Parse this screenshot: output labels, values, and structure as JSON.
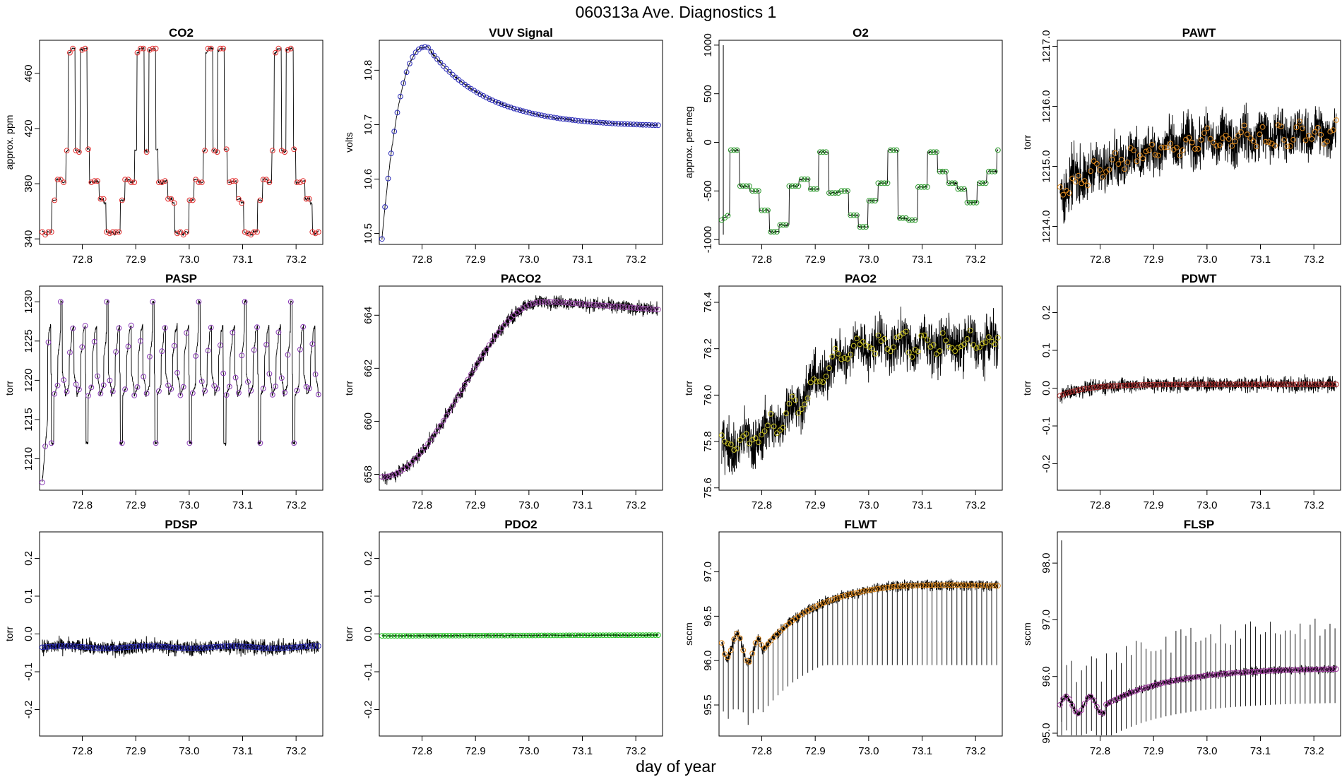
{
  "figure": {
    "title": "060313a   Ave. Diagnostics 1",
    "xlabel": "day of year"
  },
  "chart_data": [
    {
      "type": "line",
      "title": "CO2",
      "ylabel": "approx. ppm",
      "xlim": [
        72.72,
        73.25
      ],
      "ylim": [
        336,
        484
      ],
      "xticks": [
        72.8,
        72.9,
        73.0,
        73.1,
        73.2
      ],
      "xtick_labels": [
        "72.8",
        "72.9",
        "73.0",
        "73.1",
        "73.2"
      ],
      "yticks": [
        340,
        380,
        420,
        460
      ],
      "ytick_labels": [
        "340",
        "380",
        "420",
        "460"
      ],
      "marker_color": "#e23030",
      "pattern": "co2",
      "noise": 0.8
    },
    {
      "type": "line",
      "title": "VUV Signal",
      "ylabel": "volts",
      "xlim": [
        72.72,
        73.25
      ],
      "ylim": [
        10.48,
        10.855
      ],
      "xticks": [
        72.8,
        72.9,
        73.0,
        73.1,
        73.2
      ],
      "xtick_labels": [
        "72.8",
        "72.9",
        "73.0",
        "73.1",
        "73.2"
      ],
      "yticks": [
        10.5,
        10.6,
        10.7,
        10.8
      ],
      "ytick_labels": [
        "10.5",
        "10.6",
        "10.7",
        "10.8"
      ],
      "marker_color": "#2a2ab8",
      "pattern": "vuv",
      "noise": 0.002
    },
    {
      "type": "line",
      "title": "O2",
      "ylabel": "approx. per meg",
      "xlim": [
        72.72,
        73.25
      ],
      "ylim": [
        -1050,
        1050
      ],
      "xticks": [
        72.8,
        72.9,
        73.0,
        73.1,
        73.2
      ],
      "xtick_labels": [
        "72.8",
        "72.9",
        "73.0",
        "73.1",
        "73.2"
      ],
      "yticks": [
        -1000,
        -500,
        0,
        500,
        1000
      ],
      "ytick_labels": [
        "-1000",
        "-500",
        "0",
        "500",
        "1000"
      ],
      "marker_color": "#2e9a2e",
      "pattern": "o2",
      "noise": 10
    },
    {
      "type": "line",
      "title": "PAWT",
      "ylabel": "torr",
      "xlim": [
        72.72,
        73.25
      ],
      "ylim": [
        1213.7,
        1217.1
      ],
      "xticks": [
        72.8,
        72.9,
        73.0,
        73.1,
        73.2
      ],
      "xtick_labels": [
        "72.8",
        "72.9",
        "73.0",
        "73.1",
        "73.2"
      ],
      "yticks": [
        1214.0,
        1215.0,
        1216.0,
        1217.0
      ],
      "ytick_labels": [
        "1214.0",
        "1215.0",
        "1216.0",
        "1217.0"
      ],
      "marker_color": "#e08a1e",
      "pattern": "pawt",
      "noise": 0.35
    },
    {
      "type": "line",
      "title": "PASP",
      "ylabel": "torr",
      "xlim": [
        72.72,
        73.25
      ],
      "ylim": [
        1206,
        1232
      ],
      "xticks": [
        72.8,
        72.9,
        73.0,
        73.1,
        73.2
      ],
      "xtick_labels": [
        "72.8",
        "72.9",
        "73.0",
        "73.1",
        "73.2"
      ],
      "yticks": [
        1210,
        1215,
        1220,
        1225,
        1230
      ],
      "ytick_labels": [
        "1210",
        "1215",
        "1220",
        "1225",
        "1230"
      ],
      "marker_color": "#8a3ab8",
      "pattern": "pasp",
      "noise": 0.2
    },
    {
      "type": "line",
      "title": "PACO2",
      "ylabel": "torr",
      "xlim": [
        72.72,
        73.25
      ],
      "ylim": [
        657.4,
        665.1
      ],
      "xticks": [
        72.8,
        72.9,
        73.0,
        73.1,
        73.2
      ],
      "xtick_labels": [
        "72.8",
        "72.9",
        "73.0",
        "73.1",
        "73.2"
      ],
      "yticks": [
        658,
        660,
        662,
        664
      ],
      "ytick_labels": [
        "658",
        "660",
        "662",
        "664"
      ],
      "marker_color": "#a050b0",
      "pattern": "paco2",
      "noise": 0.22
    },
    {
      "type": "line",
      "title": "PAO2",
      "ylabel": "torr",
      "xlim": [
        72.72,
        73.25
      ],
      "ylim": [
        75.59,
        76.47
      ],
      "xticks": [
        72.8,
        72.9,
        73.0,
        73.1,
        73.2
      ],
      "xtick_labels": [
        "72.8",
        "72.9",
        "73.0",
        "73.1",
        "73.2"
      ],
      "yticks": [
        75.6,
        75.8,
        76.0,
        76.2,
        76.4
      ],
      "ytick_labels": [
        "75.6",
        "75.8",
        "76.0",
        "76.2",
        "76.4"
      ],
      "marker_color": "#c8c020",
      "pattern": "pao2",
      "noise": 0.09
    },
    {
      "type": "line",
      "title": "PDWT",
      "ylabel": "torr",
      "xlim": [
        72.72,
        73.25
      ],
      "ylim": [
        -0.27,
        0.27
      ],
      "xticks": [
        72.8,
        72.9,
        73.0,
        73.1,
        73.2
      ],
      "xtick_labels": [
        "72.8",
        "72.9",
        "73.0",
        "73.1",
        "73.2"
      ],
      "yticks": [
        -0.2,
        -0.1,
        0.0,
        0.1,
        0.2
      ],
      "ytick_labels": [
        "-0.2",
        "-0.1",
        "0.0",
        "0.1",
        "0.2"
      ],
      "marker_color": "#b03030",
      "pattern": "pdwt",
      "noise": 0.017
    },
    {
      "type": "line",
      "title": "PDSP",
      "ylabel": "torr",
      "xlim": [
        72.72,
        73.25
      ],
      "ylim": [
        -0.27,
        0.27
      ],
      "xticks": [
        72.8,
        72.9,
        73.0,
        73.1,
        73.2
      ],
      "xtick_labels": [
        "72.8",
        "72.9",
        "73.0",
        "73.1",
        "73.2"
      ],
      "yticks": [
        -0.2,
        -0.1,
        0.0,
        0.1,
        0.2
      ],
      "ytick_labels": [
        "-0.2",
        "-0.1",
        "0.0",
        "0.1",
        "0.2"
      ],
      "marker_color": "#2a2ab8",
      "pattern": "pdsp",
      "noise": 0.017
    },
    {
      "type": "line",
      "title": "PDO2",
      "ylabel": "torr",
      "xlim": [
        72.72,
        73.25
      ],
      "ylim": [
        -0.27,
        0.27
      ],
      "xticks": [
        72.8,
        72.9,
        73.0,
        73.1,
        73.2
      ],
      "xtick_labels": [
        "72.8",
        "72.9",
        "73.0",
        "73.1",
        "73.2"
      ],
      "yticks": [
        -0.2,
        -0.1,
        0.0,
        0.1,
        0.2
      ],
      "ytick_labels": [
        "-0.2",
        "-0.1",
        "0.0",
        "0.1",
        "0.2"
      ],
      "marker_color": "#22c522",
      "pattern": "pdo2",
      "noise": 0.002
    },
    {
      "type": "line",
      "title": "FLWT",
      "ylabel": "sccm",
      "xlim": [
        72.72,
        73.25
      ],
      "ylim": [
        95.15,
        97.45
      ],
      "xticks": [
        72.8,
        72.9,
        73.0,
        73.1,
        73.2
      ],
      "xtick_labels": [
        "72.8",
        "72.9",
        "73.0",
        "73.1",
        "73.2"
      ],
      "yticks": [
        95.5,
        96.0,
        96.5,
        97.0
      ],
      "ytick_labels": [
        "95.5",
        "96.0",
        "96.5",
        "97.0"
      ],
      "marker_color": "#e08a1e",
      "pattern": "flwt",
      "noise": 0.05
    },
    {
      "type": "line",
      "title": "FLSP",
      "ylabel": "sccm",
      "xlim": [
        72.72,
        73.25
      ],
      "ylim": [
        94.95,
        98.55
      ],
      "xticks": [
        72.8,
        72.9,
        73.0,
        73.1,
        73.2
      ],
      "xtick_labels": [
        "72.8",
        "72.9",
        "73.0",
        "73.1",
        "73.2"
      ],
      "yticks": [
        95.0,
        96.0,
        97.0,
        98.0
      ],
      "ytick_labels": [
        "95.0",
        "96.0",
        "97.0",
        "98.0"
      ],
      "marker_color": "#a03aa0",
      "pattern": "flsp",
      "noise": 0.06
    }
  ]
}
